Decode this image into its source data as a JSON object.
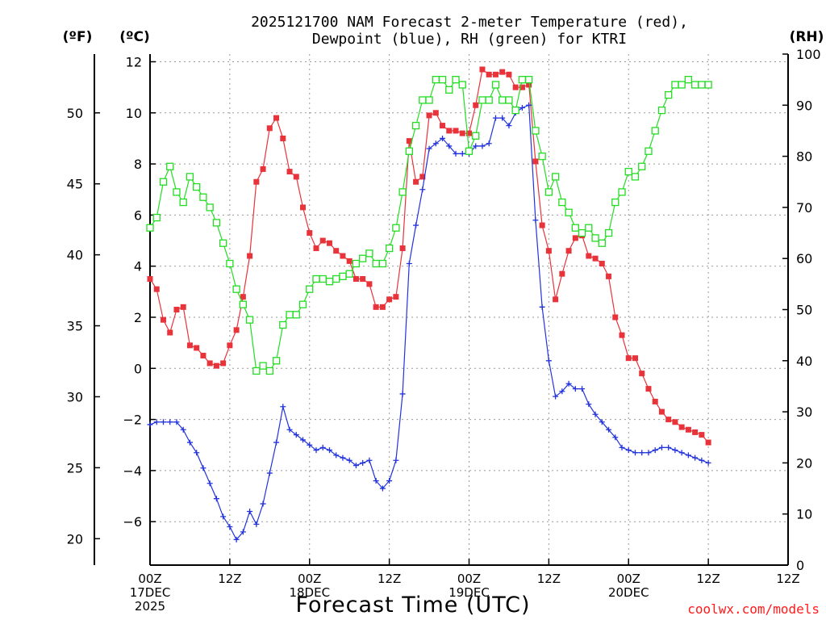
{
  "chart_data": {
    "type": "line",
    "title_lines": [
      "2025121700 NAM Forecast 2-meter Temperature (red),",
      "Dewpoint (blue), RH (green) for KTRI"
    ],
    "xlabel": "Forecast Time (UTC)",
    "credit": "coolwx.com/models",
    "unit_labels": {
      "fahrenheit": "(ºF)",
      "celsius": "(ºC)",
      "rh": "(RH)"
    },
    "x_hours": [
      0,
      48
    ],
    "x_ticks": [
      {
        "hour": 0,
        "lines": [
          "00Z",
          "17DEC",
          "2025"
        ]
      },
      {
        "hour": 6,
        "lines": [
          "12Z"
        ]
      },
      {
        "hour": 12,
        "lines": [
          "00Z",
          "18DEC"
        ]
      },
      {
        "hour": 18,
        "lines": [
          "12Z"
        ]
      },
      {
        "hour": 24,
        "lines": [
          "00Z",
          "19DEC"
        ]
      },
      {
        "hour": 30,
        "lines": [
          "12Z"
        ]
      },
      {
        "hour": 36,
        "lines": [
          "00Z",
          "20DEC"
        ]
      },
      {
        "hour": 42,
        "lines": [
          "12Z"
        ]
      }
    ],
    "x_end_tick": {
      "hour": 42,
      "lines": [
        "12Z"
      ]
    },
    "celsius_axis": {
      "range": [
        -7.7,
        12.3
      ],
      "ticks": [
        12,
        10,
        8,
        6,
        4,
        2,
        0,
        -2,
        -4,
        -6
      ]
    },
    "fahrenheit_axis": {
      "range": [
        18.14,
        54.14
      ],
      "ticks": [
        50,
        45,
        40,
        35,
        30,
        25,
        20
      ]
    },
    "rh_axis": {
      "range": [
        0,
        100
      ],
      "ticks": [
        100,
        90,
        80,
        70,
        60,
        50,
        40,
        30,
        20,
        10,
        0
      ]
    },
    "grid": true,
    "series": [
      {
        "color": "#e8333a",
        "marker": "filled-square",
        "axis": "celsius",
        "x": [
          0,
          0.5,
          1,
          1.5,
          2,
          2.5,
          3,
          3.5,
          4,
          4.5,
          5,
          5.5,
          6,
          6.5,
          7,
          7.5,
          8,
          8.5,
          9,
          9.5,
          10,
          10.5,
          11,
          11.5,
          12,
          12.5,
          13,
          13.5,
          14,
          14.5,
          15,
          15.5,
          16,
          16.5,
          17,
          17.5,
          18,
          18.5,
          19,
          19.5,
          20,
          20.5,
          21,
          21.5,
          22,
          22.5,
          23,
          23.5,
          24,
          24.5,
          25,
          25.5,
          26,
          26.5,
          27,
          27.5,
          28,
          28.5,
          29,
          29.5,
          30,
          30.5,
          31,
          31.5,
          32,
          32.5,
          33,
          33.5,
          34,
          34.5,
          35,
          35.5,
          36,
          36.5,
          37,
          37.5,
          38,
          38.5,
          39,
          39.5,
          40,
          40.5,
          41,
          41.5,
          42
        ],
        "values": [
          3.5,
          3.1,
          1.9,
          1.4,
          2.3,
          2.4,
          0.9,
          0.8,
          0.5,
          0.2,
          0.1,
          0.2,
          0.9,
          1.5,
          2.8,
          4.4,
          7.3,
          7.8,
          9.4,
          9.8,
          9.0,
          7.7,
          7.5,
          6.3,
          5.3,
          4.7,
          5.0,
          4.9,
          4.6,
          4.4,
          4.2,
          3.5,
          3.5,
          3.3,
          2.4,
          2.4,
          2.7,
          2.8,
          4.7,
          8.9,
          7.3,
          7.5,
          9.9,
          10.0,
          9.5,
          9.3,
          9.3,
          9.2,
          9.2,
          10.3,
          11.7,
          11.5,
          11.5,
          11.6,
          11.5,
          11.0,
          11.0,
          11.1,
          8.1,
          5.6,
          4.6,
          2.7,
          3.7,
          4.6,
          5.1,
          5.2,
          4.4,
          4.3,
          4.1,
          3.6,
          2.0,
          1.3,
          0.4,
          0.4,
          -0.2,
          -0.8,
          -1.3,
          -1.7,
          -2.0,
          -2.1,
          -2.3,
          -2.4,
          -2.5,
          -2.6,
          -2.9
        ]
      },
      {
        "color": "#2233dd",
        "marker": "plus",
        "axis": "celsius",
        "x": [
          0,
          0.5,
          1,
          1.5,
          2,
          2.5,
          3,
          3.5,
          4,
          4.5,
          5,
          5.5,
          6,
          6.5,
          7,
          7.5,
          8,
          8.5,
          9,
          9.5,
          10,
          10.5,
          11,
          11.5,
          12,
          12.5,
          13,
          13.5,
          14,
          14.5,
          15,
          15.5,
          16,
          16.5,
          17,
          17.5,
          18,
          18.5,
          19,
          19.5,
          20,
          20.5,
          21,
          21.5,
          22,
          22.5,
          23,
          23.5,
          24,
          24.5,
          25,
          25.5,
          26,
          26.5,
          27,
          27.5,
          28,
          28.5,
          29,
          29.5,
          30,
          30.5,
          31,
          31.5,
          32,
          32.5,
          33,
          33.5,
          34,
          34.5,
          35,
          35.5,
          36,
          36.5,
          37,
          37.5,
          38,
          38.5,
          39,
          39.5,
          40,
          40.5,
          41,
          41.5,
          42
        ],
        "values": [
          -2.2,
          -2.1,
          -2.1,
          -2.1,
          -2.1,
          -2.4,
          -2.9,
          -3.3,
          -3.9,
          -4.5,
          -5.1,
          -5.8,
          -6.2,
          -6.7,
          -6.4,
          -5.6,
          -6.1,
          -5.3,
          -4.1,
          -2.9,
          -1.5,
          -2.4,
          -2.6,
          -2.8,
          -3.0,
          -3.2,
          -3.1,
          -3.2,
          -3.4,
          -3.5,
          -3.6,
          -3.8,
          -3.7,
          -3.6,
          -4.4,
          -4.7,
          -4.4,
          -3.6,
          -1.0,
          4.1,
          5.6,
          7.0,
          8.6,
          8.8,
          9.0,
          8.7,
          8.4,
          8.4,
          8.4,
          8.7,
          8.7,
          8.8,
          9.8,
          9.8,
          9.5,
          10.0,
          10.2,
          10.3,
          5.8,
          2.4,
          0.3,
          -1.1,
          -0.9,
          -0.6,
          -0.8,
          -0.8,
          -1.4,
          -1.8,
          -2.1,
          -2.4,
          -2.7,
          -3.1,
          -3.2,
          -3.3,
          -3.3,
          -3.3,
          -3.2,
          -3.1,
          -3.1,
          -3.2,
          -3.3,
          -3.4,
          -3.5,
          -3.6,
          -3.7
        ]
      },
      {
        "color": "#22dd22",
        "marker": "open-square",
        "axis": "rh",
        "x": [
          0,
          0.5,
          1,
          1.5,
          2,
          2.5,
          3,
          3.5,
          4,
          4.5,
          5,
          5.5,
          6,
          6.5,
          7,
          7.5,
          8,
          8.5,
          9,
          9.5,
          10,
          10.5,
          11,
          11.5,
          12,
          12.5,
          13,
          13.5,
          14,
          14.5,
          15,
          15.5,
          16,
          16.5,
          17,
          17.5,
          18,
          18.5,
          19,
          19.5,
          20,
          20.5,
          21,
          21.5,
          22,
          22.5,
          23,
          23.5,
          24,
          24.5,
          25,
          25.5,
          26,
          26.5,
          27,
          27.5,
          28,
          28.5,
          29,
          29.5,
          30,
          30.5,
          31,
          31.5,
          32,
          32.5,
          33,
          33.5,
          34,
          34.5,
          35,
          35.5,
          36,
          36.5,
          37,
          37.5,
          38,
          38.5,
          39,
          39.5,
          40,
          40.5,
          41,
          41.5,
          42
        ],
        "values": [
          66,
          68,
          75,
          78,
          73,
          71,
          76,
          74,
          72,
          70,
          67,
          63,
          59,
          54,
          51,
          48,
          38,
          39,
          38,
          40,
          47,
          49,
          49,
          51,
          54,
          56,
          56,
          55.5,
          56,
          56.5,
          57,
          59,
          60,
          61,
          59,
          59,
          62,
          66,
          73,
          81,
          86,
          91,
          91,
          95,
          95,
          93,
          95,
          94,
          81,
          84,
          91,
          91,
          94,
          91,
          91,
          89,
          95,
          95,
          85,
          80,
          73,
          76,
          71,
          69,
          66,
          65,
          66,
          64,
          63,
          65,
          71,
          73,
          77,
          76,
          78,
          81,
          85,
          89,
          92,
          94,
          94,
          95,
          94,
          94,
          94
        ]
      }
    ]
  }
}
